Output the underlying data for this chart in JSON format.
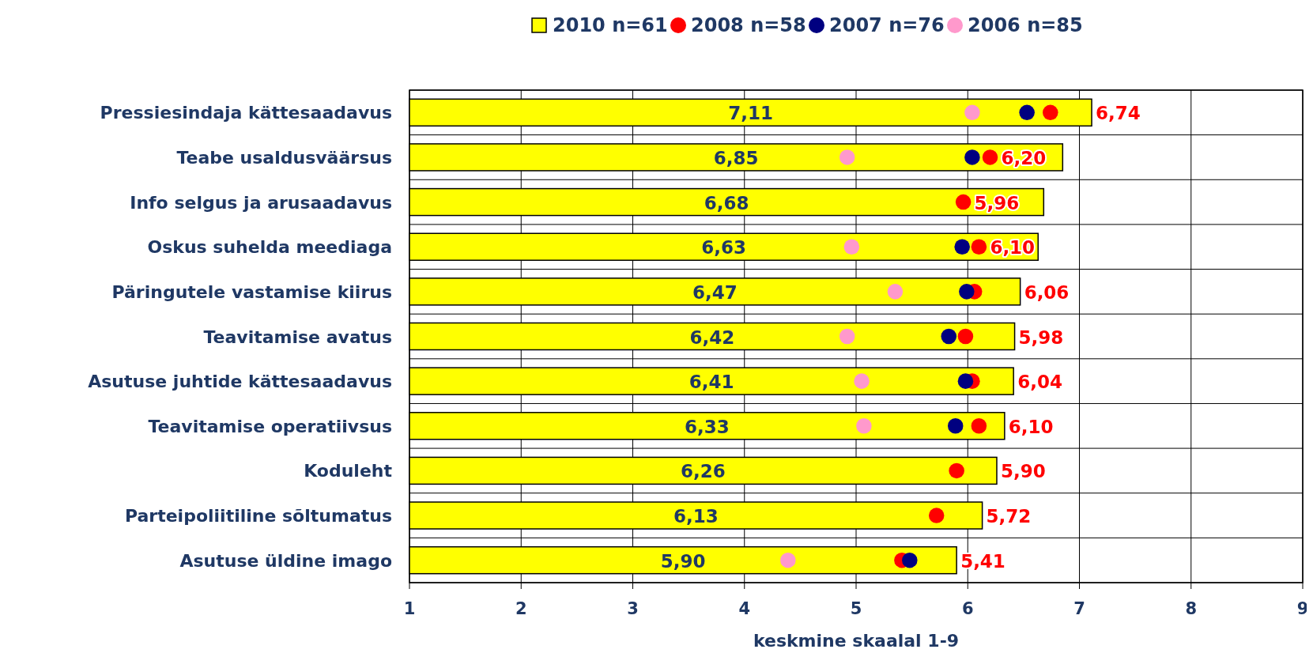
{
  "chart_data": {
    "type": "bar",
    "orientation": "horizontal",
    "xlabel": "keskmine skaalal 1-9",
    "categories": [
      "Pressiesindaja kättesaadavus",
      "Teabe usaldusväärsus",
      "Info selgus ja arusaadavus",
      "Oskus suhelda meediaga",
      "Päringutele vastamise kiirus",
      "Teavitamise avatus",
      "Asutuse juhtide kättesaadavus",
      "Teavitamise operatiivsus",
      "Koduleht",
      "Parteipoliitiline sõltumatus",
      "Asutuse üldine imago"
    ],
    "series": [
      {
        "name": "2010 n=61",
        "color": "#ffff00",
        "values": [
          7.11,
          6.85,
          6.68,
          6.63,
          6.47,
          6.42,
          6.41,
          6.33,
          6.26,
          6.13,
          5.9
        ],
        "value_labels": [
          "7,11",
          "6,85",
          "6,68",
          "6,63",
          "6,47",
          "6,42",
          "6,41",
          "6,33",
          "6,26",
          "6,13",
          "5,90"
        ]
      },
      {
        "name": "2008 n=58",
        "type": "scatter",
        "color": "#ff0000",
        "values": [
          6.74,
          6.2,
          5.96,
          6.1,
          6.06,
          5.98,
          6.04,
          6.1,
          5.9,
          5.72,
          5.41
        ],
        "value_labels": [
          "6,74",
          "6,20",
          "5,96",
          "6,10",
          "6,06",
          "5,98",
          "6,04",
          "6,10",
          "5,90",
          "5,72",
          "5,41"
        ]
      },
      {
        "name": "2007 n=76",
        "type": "scatter",
        "color": "#000080",
        "values": [
          6.53,
          6.04,
          null,
          5.95,
          5.99,
          5.83,
          5.98,
          5.89,
          null,
          null,
          5.48
        ]
      },
      {
        "name": "2006 n=85",
        "type": "scatter",
        "color": "#ff99cc",
        "values": [
          6.04,
          4.92,
          null,
          4.96,
          5.35,
          4.92,
          5.05,
          5.07,
          null,
          null,
          4.39
        ]
      }
    ],
    "xlim": [
      1,
      9
    ],
    "xticks": [
      1,
      2,
      3,
      4,
      5,
      6,
      7,
      8,
      9
    ],
    "grid": true,
    "legend": "top",
    "marker": "circle"
  }
}
